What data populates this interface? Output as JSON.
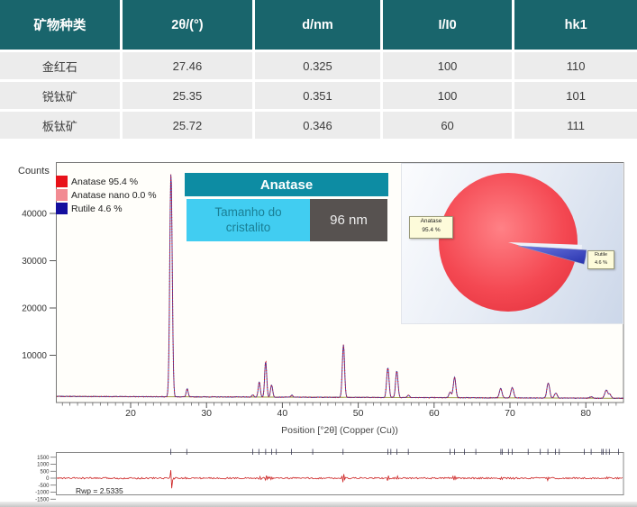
{
  "table": {
    "headers": [
      "矿物种类",
      "2θ/(°)",
      "d/nm",
      "I/I0",
      "hk1"
    ],
    "rows": [
      [
        "金红石",
        "27.46",
        "0.325",
        "100",
        "110"
      ],
      [
        "锐钛矿",
        "25.35",
        "0.351",
        "100",
        "101"
      ],
      [
        "板钛矿",
        "25.72",
        "0.346",
        "60",
        "111"
      ]
    ]
  },
  "colors": {
    "table_header": "#19656c",
    "banner": "#0d8ca3",
    "crystallite_box": "#41cdf1",
    "crystallite_text": "#1a7f95",
    "value_box": "#575250",
    "legend_red": "#e81119",
    "legend_pink": "#f28b92",
    "legend_navy": "#150f9e",
    "pie_red": "#f2414b",
    "pie_blue": "#3a46c4",
    "residual_line": "#cc2020"
  },
  "chart": {
    "y_axis_label": "Counts",
    "x_axis_label": "Position [°2θ] (Copper (Cu))",
    "legend": [
      {
        "label": "Anatase 95.4 %",
        "color": "#e81119"
      },
      {
        "label": "Anatase nano 0.0 %",
        "color": "#f28b92"
      },
      {
        "label": "Rutile 4.6 %",
        "color": "#150f9e"
      }
    ],
    "banner": {
      "title": "Anatase",
      "field_label": "Tamanho do cristalito",
      "field_value": "96 nm"
    },
    "pie_labels": [
      {
        "name": "Anatase",
        "pct": "95.4 %"
      },
      {
        "name": "Rutile",
        "pct": "4.6 %"
      }
    ],
    "residual": {
      "rwp_label": "Rwp = 2.5335"
    }
  },
  "chart_data": {
    "type": "line",
    "title": "",
    "xlabel": "Position [°2θ] (Copper (Cu))",
    "ylabel": "Counts",
    "xlim": [
      10.2,
      85.0
    ],
    "ylim": [
      0,
      51000
    ],
    "x_ticks": [
      20,
      30,
      40,
      50,
      60,
      70,
      80
    ],
    "y_ticks": [
      10000,
      20000,
      30000,
      40000
    ],
    "grid": false,
    "legend_position": "top-left",
    "series_legend": [
      "Anatase 95.4 %",
      "Anatase nano 0.0 %",
      "Rutile 4.6 %"
    ],
    "phase_composition_pct": {
      "Anatase": 95.4,
      "Anatase nano": 0.0,
      "Rutile": 4.6
    },
    "crystallite_size_nm": 96,
    "peaks_2theta_counts": [
      [
        25.32,
        47500
      ],
      [
        27.45,
        1700
      ],
      [
        36.1,
        450
      ],
      [
        36.95,
        3200
      ],
      [
        37.8,
        7600
      ],
      [
        38.58,
        2600
      ],
      [
        41.25,
        400
      ],
      [
        48.05,
        11200
      ],
      [
        53.9,
        6300
      ],
      [
        55.08,
        5600
      ],
      [
        56.62,
        500
      ],
      [
        62.12,
        1200
      ],
      [
        62.7,
        4300
      ],
      [
        68.78,
        2000
      ],
      [
        70.31,
        2200
      ],
      [
        75.05,
        3200
      ],
      [
        76.04,
        1100
      ],
      [
        80.7,
        300
      ],
      [
        82.68,
        1700
      ],
      [
        83.15,
        800
      ]
    ],
    "background_counts": {
      "start": 1300,
      "end": 900
    },
    "reflection_markers_2theta": [
      25.3,
      27.4,
      36.1,
      36.9,
      37.8,
      38.6,
      39.2,
      41.2,
      44.0,
      48.0,
      53.9,
      54.3,
      55.1,
      56.6,
      62.1,
      62.7,
      64.0,
      65.5,
      68.8,
      69.0,
      69.8,
      70.3,
      72.4,
      74.0,
      75.0,
      76.0,
      76.5,
      79.8,
      80.7,
      82.1,
      82.3,
      82.7,
      83.1,
      84.3
    ],
    "residual": {
      "ylim": [
        -1500,
        1500
      ],
      "y_ticks": [
        1500,
        1000,
        500,
        0,
        -500,
        -1000,
        -1500
      ],
      "rwp": 2.5335
    },
    "pie": {
      "type": "pie",
      "labels": [
        "Anatase",
        "Rutile"
      ],
      "values": [
        95.4,
        4.6
      ]
    }
  }
}
